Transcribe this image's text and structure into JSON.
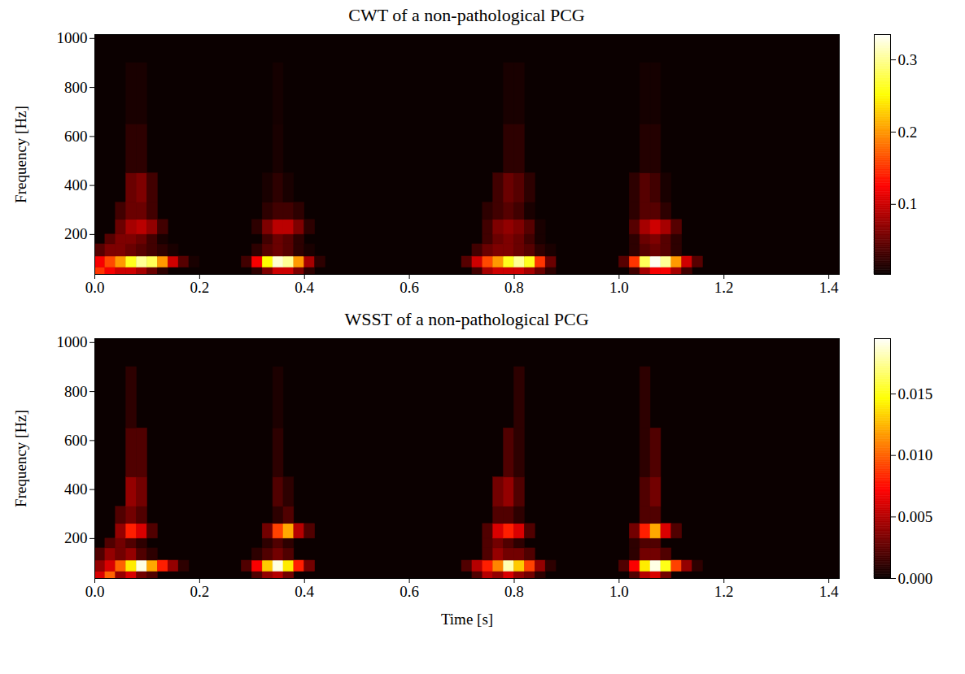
{
  "chart_data": [
    {
      "type": "heatmap",
      "title": "CWT of a non-pathological PCG",
      "color": "hot",
      "y_label": "Frequency [Hz]",
      "xlim": [
        0,
        1.42
      ],
      "xticks": [
        {
          "value": 0,
          "label": "0.0"
        },
        0.2,
        0.4,
        0.6,
        0.8,
        {
          "value": 1,
          "label": "1.0"
        },
        1.2,
        1.4
      ],
      "ylim": [
        37,
        1016
      ],
      "yticks": [
        200,
        400,
        600,
        800,
        1000
      ],
      "time_step": 0.02,
      "colorbar": {
        "range": [
          0.003,
          0.335
        ],
        "ticks": [
          0.1,
          0.2,
          0.3
        ]
      },
      "bands": [
        {
          "f": [
            37,
            65
          ],
          "runs": [
            {
              "t": 0.0,
              "values": [
                0.15,
                0.12,
                0.1,
                0.1,
                0.08,
                0.05,
                0.02
              ]
            },
            {
              "t": 0.3,
              "values": [
                0.02,
                0.06,
                0.1,
                0.1,
                0.06,
                0.02
              ]
            },
            {
              "t": 0.72,
              "values": [
                0.03,
                0.08,
                0.1,
                0.1,
                0.1,
                0.08,
                0.05,
                0.02
              ]
            },
            {
              "t": 1.02,
              "values": [
                0.03,
                0.08,
                0.12,
                0.12,
                0.08,
                0.03
              ]
            }
          ]
        },
        {
          "f": [
            65,
            110
          ],
          "runs": [
            {
              "t": 0.0,
              "values": [
                0.12,
                0.16,
                0.2,
                0.26,
                0.3,
                0.28,
                0.2,
                0.1,
                0.04,
                0.01
              ]
            },
            {
              "t": 0.28,
              "values": [
                0.03,
                0.12,
                0.25,
                0.32,
                0.3,
                0.2,
                0.08,
                0.02
              ]
            },
            {
              "t": 0.7,
              "values": [
                0.04,
                0.1,
                0.16,
                0.2,
                0.26,
                0.3,
                0.26,
                0.15,
                0.05
              ]
            },
            {
              "t": 1.0,
              "values": [
                0.04,
                0.15,
                0.28,
                0.33,
                0.3,
                0.2,
                0.1,
                0.04
              ]
            }
          ]
        },
        {
          "f": [
            110,
            160
          ],
          "runs": [
            {
              "t": 0.0,
              "values": [
                0.04,
                0.06,
                0.06,
                0.05,
                0.04,
                0.03,
                0.02,
                0.01
              ]
            },
            {
              "t": 0.3,
              "values": [
                0.02,
                0.04,
                0.05,
                0.04,
                0.02,
                0.01
              ]
            },
            {
              "t": 0.72,
              "values": [
                0.03,
                0.05,
                0.06,
                0.06,
                0.05,
                0.04,
                0.02,
                0.01
              ]
            },
            {
              "t": 1.02,
              "values": [
                0.02,
                0.04,
                0.05,
                0.04,
                0.02
              ]
            }
          ]
        },
        {
          "f": [
            160,
            200
          ],
          "runs": [
            {
              "t": 0.02,
              "values": [
                0.04,
                0.06,
                0.06,
                0.05,
                0.03,
                0.01
              ]
            },
            {
              "t": 0.32,
              "values": [
                0.03,
                0.05,
                0.04,
                0.02
              ]
            },
            {
              "t": 0.74,
              "values": [
                0.03,
                0.05,
                0.06,
                0.05,
                0.03,
                0.01
              ]
            },
            {
              "t": 1.02,
              "values": [
                0.02,
                0.05,
                0.06,
                0.04,
                0.02
              ]
            }
          ]
        },
        {
          "f": [
            200,
            260
          ],
          "runs": [
            {
              "t": 0.04,
              "values": [
                0.05,
                0.08,
                0.09,
                0.07,
                0.03
              ]
            },
            {
              "t": 0.3,
              "values": [
                0.02,
                0.06,
                0.09,
                0.09,
                0.06,
                0.02
              ]
            },
            {
              "t": 0.74,
              "values": [
                0.03,
                0.06,
                0.07,
                0.06,
                0.04,
                0.01
              ]
            },
            {
              "t": 1.02,
              "values": [
                0.04,
                0.08,
                0.1,
                0.08,
                0.04
              ]
            }
          ]
        },
        {
          "f": [
            260,
            330
          ],
          "runs": [
            {
              "t": 0.04,
              "values": [
                0.03,
                0.05,
                0.05,
                0.03
              ]
            },
            {
              "t": 0.32,
              "values": [
                0.02,
                0.03,
                0.03,
                0.02
              ]
            },
            {
              "t": 0.74,
              "values": [
                0.02,
                0.03,
                0.04,
                0.03,
                0.01
              ]
            },
            {
              "t": 1.02,
              "values": [
                0.02,
                0.04,
                0.04,
                0.02
              ]
            }
          ]
        },
        {
          "f": [
            330,
            450
          ],
          "runs": [
            {
              "t": 0.06,
              "values": [
                0.05,
                0.06,
                0.03
              ]
            },
            {
              "t": 0.32,
              "values": [
                0.01,
                0.02,
                0.01
              ]
            },
            {
              "t": 0.76,
              "values": [
                0.03,
                0.05,
                0.04,
                0.02
              ]
            },
            {
              "t": 1.02,
              "values": [
                0.02,
                0.04,
                0.03,
                0.01
              ]
            }
          ]
        },
        {
          "f": [
            450,
            650
          ],
          "runs": [
            {
              "t": 0.06,
              "values": [
                0.02,
                0.02
              ]
            },
            {
              "t": 0.34,
              "values": [
                0.01
              ]
            },
            {
              "t": 0.78,
              "values": [
                0.02,
                0.02
              ]
            },
            {
              "t": 1.04,
              "values": [
                0.015,
                0.015
              ]
            }
          ]
        },
        {
          "f": [
            650,
            900
          ],
          "runs": [
            {
              "t": 0.06,
              "values": [
                0.01,
                0.01
              ]
            },
            {
              "t": 0.34,
              "values": [
                0.008
              ]
            },
            {
              "t": 0.78,
              "values": [
                0.01,
                0.01
              ]
            },
            {
              "t": 1.04,
              "values": [
                0.008,
                0.008
              ]
            }
          ]
        }
      ]
    },
    {
      "type": "heatmap",
      "title": "WSST of a non-pathological PCG",
      "color": "hot",
      "x_label": "Time [s]",
      "y_label": "Frequency [Hz]",
      "xlim": [
        0,
        1.42
      ],
      "xticks": [
        {
          "value": 0,
          "label": "0.0"
        },
        0.2,
        0.4,
        0.6,
        0.8,
        {
          "value": 1,
          "label": "1.0"
        },
        1.2,
        1.4
      ],
      "ylim": [
        37,
        1016
      ],
      "yticks": [
        200,
        400,
        600,
        800,
        1000
      ],
      "time_step": 0.02,
      "colorbar": {
        "range": [
          0,
          0.0195
        ],
        "ticks": [
          {
            "value": 0,
            "label": "0.000"
          },
          0.005,
          {
            "value": 0.01,
            "label": "0.010"
          },
          0.015
        ]
      },
      "bands": [
        {
          "f": [
            37,
            65
          ],
          "runs": [
            {
              "t": 0.0,
              "values": [
                0.006,
                0.01,
                0.004,
                0.006,
                0.003,
                0.002
              ]
            },
            {
              "t": 0.3,
              "values": [
                0.002,
                0.004,
                0.005,
                0.003
              ]
            },
            {
              "t": 0.72,
              "values": [
                0.002,
                0.005,
                0.004,
                0.006,
                0.004,
                0.003,
                0.001
              ]
            },
            {
              "t": 1.02,
              "values": [
                0.002,
                0.005,
                0.006,
                0.003
              ]
            }
          ]
        },
        {
          "f": [
            65,
            110
          ],
          "runs": [
            {
              "t": 0.0,
              "values": [
                0.004,
                0.006,
                0.01,
                0.014,
                0.019,
                0.012,
                0.008,
                0.004,
                0.001
              ]
            },
            {
              "t": 0.28,
              "values": [
                0.002,
                0.007,
                0.013,
                0.019,
                0.014,
                0.008,
                0.003
              ]
            },
            {
              "t": 0.7,
              "values": [
                0.002,
                0.005,
                0.008,
                0.011,
                0.018,
                0.013,
                0.009,
                0.004,
                0.001
              ]
            },
            {
              "t": 1.0,
              "values": [
                0.002,
                0.007,
                0.014,
                0.019,
                0.015,
                0.009,
                0.004,
                0.001
              ]
            }
          ]
        },
        {
          "f": [
            110,
            160
          ],
          "runs": [
            {
              "t": 0.0,
              "values": [
                0.002,
                0.004,
                0.003,
                0.004,
                0.002,
                0.001
              ]
            },
            {
              "t": 0.3,
              "values": [
                0.001,
                0.002,
                0.003,
                0.002
              ]
            },
            {
              "t": 0.74,
              "values": [
                0.002,
                0.004,
                0.003,
                0.003,
                0.002
              ]
            },
            {
              "t": 1.02,
              "values": [
                0.001,
                0.003,
                0.003,
                0.002
              ]
            }
          ]
        },
        {
          "f": [
            160,
            200
          ],
          "runs": [
            {
              "t": 0.02,
              "values": [
                0.002,
                0.003,
                0.002,
                0.001
              ]
            },
            {
              "t": 0.32,
              "values": [
                0.001,
                0.002,
                0.001
              ]
            },
            {
              "t": 0.74,
              "values": [
                0.002,
                0.003,
                0.002,
                0.001
              ]
            },
            {
              "t": 1.02,
              "values": [
                0.001,
                0.002,
                0.002
              ]
            }
          ]
        },
        {
          "f": [
            200,
            260
          ],
          "runs": [
            {
              "t": 0.04,
              "values": [
                0.004,
                0.008,
                0.006,
                0.002
              ]
            },
            {
              "t": 0.32,
              "values": [
                0.003,
                0.009,
                0.012,
                0.005,
                0.002
              ]
            },
            {
              "t": 0.74,
              "values": [
                0.002,
                0.006,
                0.008,
                0.006,
                0.002
              ]
            },
            {
              "t": 1.02,
              "values": [
                0.003,
                0.008,
                0.012,
                0.006,
                0.002
              ]
            }
          ]
        },
        {
          "f": [
            260,
            330
          ],
          "runs": [
            {
              "t": 0.04,
              "values": [
                0.002,
                0.003,
                0.002
              ]
            },
            {
              "t": 0.34,
              "values": [
                0.001,
                0.002
              ]
            },
            {
              "t": 0.76,
              "values": [
                0.002,
                0.002,
                0.001
              ]
            },
            {
              "t": 1.04,
              "values": [
                0.002,
                0.002
              ]
            }
          ]
        },
        {
          "f": [
            330,
            450
          ],
          "runs": [
            {
              "t": 0.06,
              "values": [
                0.004,
                0.003
              ]
            },
            {
              "t": 0.34,
              "values": [
                0.002,
                0.001
              ]
            },
            {
              "t": 0.76,
              "values": [
                0.003,
                0.004,
                0.002
              ]
            },
            {
              "t": 1.04,
              "values": [
                0.002,
                0.003
              ]
            }
          ]
        },
        {
          "f": [
            450,
            650
          ],
          "runs": [
            {
              "t": 0.06,
              "values": [
                0.002,
                0.002
              ]
            },
            {
              "t": 0.34,
              "values": [
                0.001
              ]
            },
            {
              "t": 0.78,
              "values": [
                0.002,
                0.001
              ]
            },
            {
              "t": 1.04,
              "values": [
                0.001,
                0.002
              ]
            }
          ]
        },
        {
          "f": [
            650,
            900
          ],
          "runs": [
            {
              "t": 0.06,
              "values": [
                0.001
              ]
            },
            {
              "t": 0.34,
              "values": [
                0.0005
              ]
            },
            {
              "t": 0.8,
              "values": [
                0.001
              ]
            },
            {
              "t": 1.04,
              "values": [
                0.001
              ]
            }
          ]
        }
      ]
    }
  ]
}
